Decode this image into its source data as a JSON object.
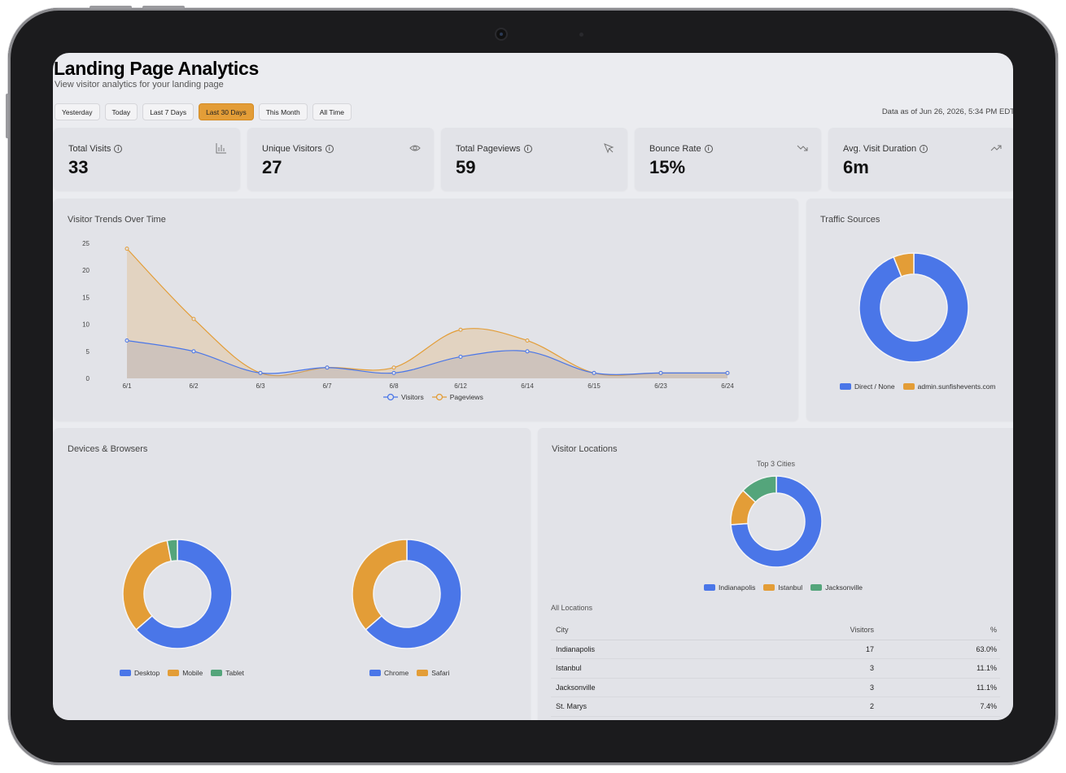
{
  "header": {
    "title": "Landing Page Analytics",
    "subtitle": "View visitor analytics for your landing page",
    "data_as_of": "Data as of Jun 26, 2026, 5:34 PM EDT"
  },
  "date_ranges": [
    {
      "label": "Yesterday",
      "active": false
    },
    {
      "label": "Today",
      "active": false
    },
    {
      "label": "Last 7 Days",
      "active": false
    },
    {
      "label": "Last 30 Days",
      "active": true
    },
    {
      "label": "This Month",
      "active": false
    },
    {
      "label": "All Time",
      "active": false
    }
  ],
  "stats": [
    {
      "label": "Total Visits",
      "value": "33",
      "icon": "bar-chart-icon"
    },
    {
      "label": "Unique Visitors",
      "value": "27",
      "icon": "eye-icon"
    },
    {
      "label": "Total Pageviews",
      "value": "59",
      "icon": "cursor-icon"
    },
    {
      "label": "Bounce Rate",
      "value": "15%",
      "icon": "trending-down-icon"
    },
    {
      "label": "Avg. Visit Duration",
      "value": "6m",
      "icon": "trending-up-icon"
    }
  ],
  "colors": {
    "blue": "#4a76e8",
    "orange": "#e39d37",
    "green": "#54a57b",
    "active_range": "#e39d37"
  },
  "trends": {
    "title": "Visitor Trends Over Time",
    "legend": [
      "Visitors",
      "Pageviews"
    ]
  },
  "traffic": {
    "title": "Traffic Sources",
    "legend": [
      "Direct / None",
      "admin.sunfishevents.com"
    ]
  },
  "devices": {
    "title": "Devices & Browsers",
    "device_legend": [
      "Desktop",
      "Mobile",
      "Tablet"
    ],
    "browser_legend": [
      "Chrome",
      "Safari"
    ]
  },
  "locations": {
    "title": "Visitor Locations",
    "top_title": "Top 3 Cities",
    "legend": [
      "Indianapolis",
      "Istanbul",
      "Jacksonville"
    ],
    "all_title": "All Locations",
    "columns": [
      "City",
      "Visitors",
      "%"
    ],
    "rows": [
      {
        "city": "Indianapolis",
        "visitors": "17",
        "pct": "63.0%"
      },
      {
        "city": "Istanbul",
        "visitors": "3",
        "pct": "11.1%"
      },
      {
        "city": "Jacksonville",
        "visitors": "3",
        "pct": "11.1%"
      },
      {
        "city": "St. Marys",
        "visitors": "2",
        "pct": "7.4%"
      }
    ]
  },
  "chart_data": [
    {
      "type": "area",
      "title": "Visitor Trends Over Time",
      "x": [
        "6/1",
        "6/2",
        "6/3",
        "6/7",
        "6/8",
        "6/12",
        "6/14",
        "6/15",
        "6/23",
        "6/24"
      ],
      "series": [
        {
          "name": "Visitors",
          "values": [
            7,
            5,
            1,
            2,
            1,
            4,
            5,
            1,
            1,
            1
          ]
        },
        {
          "name": "Pageviews",
          "values": [
            24,
            11,
            1,
            2,
            2,
            9,
            7,
            1,
            1,
            1
          ]
        }
      ],
      "ylim": [
        0,
        25
      ],
      "yticks": [
        0,
        5,
        10,
        15,
        20,
        25
      ],
      "grid": false,
      "legend": "bottom"
    },
    {
      "type": "pie",
      "title": "Traffic Sources",
      "categories": [
        "Direct / None",
        "admin.sunfishevents.com"
      ],
      "values": [
        31,
        2
      ],
      "legend": "bottom"
    },
    {
      "type": "pie",
      "categories": [
        "Desktop",
        "Mobile",
        "Tablet"
      ],
      "values": [
        21,
        11,
        1
      ],
      "legend": "bottom"
    },
    {
      "type": "pie",
      "categories": [
        "Chrome",
        "Safari"
      ],
      "values": [
        21,
        12
      ],
      "legend": "bottom"
    },
    {
      "type": "pie",
      "title": "Top 3 Cities",
      "categories": [
        "Indianapolis",
        "Istanbul",
        "Jacksonville"
      ],
      "values": [
        17,
        3,
        3
      ],
      "legend": "bottom"
    }
  ]
}
